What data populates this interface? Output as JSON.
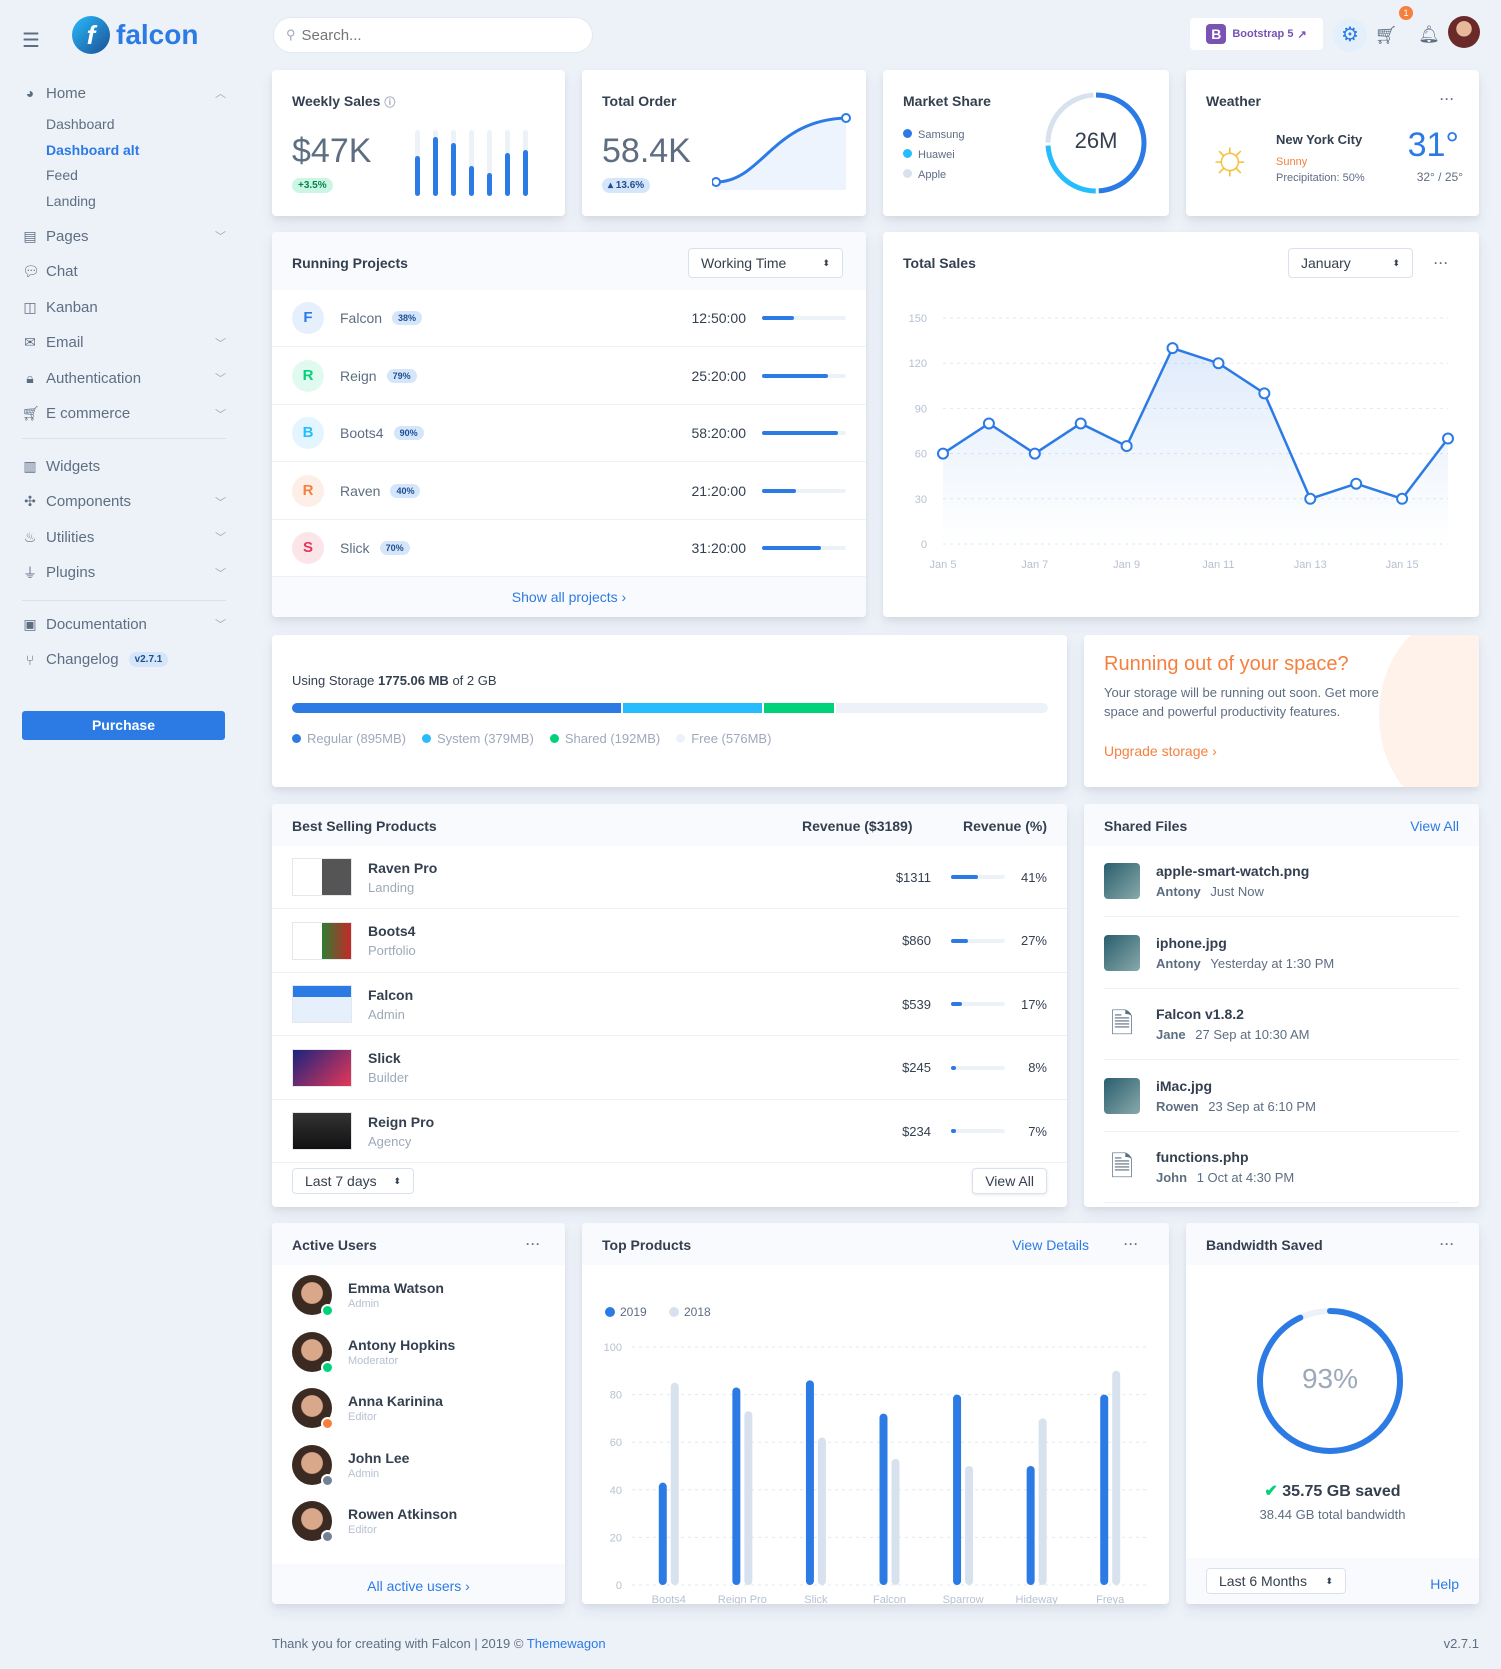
{
  "brand": {
    "name": "falcon"
  },
  "search": {
    "placeholder": "Search..."
  },
  "topbar": {
    "bootstrap_label": "Bootstrap 5",
    "cart_count": "1"
  },
  "sidebar": {
    "home": {
      "label": "Home",
      "sub": [
        "Dashboard",
        "Dashboard alt",
        "Feed",
        "Landing"
      ],
      "active": "Dashboard alt"
    },
    "items": [
      {
        "label": "Pages",
        "icon": "pages-icon",
        "chev": true
      },
      {
        "label": "Chat",
        "icon": "chat-icon",
        "chev": false
      },
      {
        "label": "Kanban",
        "icon": "kanban-icon",
        "chev": false
      },
      {
        "label": "Email",
        "icon": "email-icon",
        "chev": true
      },
      {
        "label": "Authentication",
        "icon": "lock-icon",
        "chev": true
      },
      {
        "label": "E commerce",
        "icon": "cart-icon",
        "chev": true
      }
    ],
    "items2": [
      {
        "label": "Widgets",
        "icon": "widgets-icon",
        "chev": false
      },
      {
        "label": "Components",
        "icon": "puzzle-icon",
        "chev": true
      },
      {
        "label": "Utilities",
        "icon": "fire-icon",
        "chev": true
      },
      {
        "label": "Plugins",
        "icon": "plug-icon",
        "chev": true
      }
    ],
    "items3": [
      {
        "label": "Documentation",
        "icon": "book-icon",
        "chev": true
      },
      {
        "label": "Changelog",
        "icon": "branch-icon",
        "chev": false,
        "badge": "v2.7.1"
      }
    ],
    "purchase": "Purchase"
  },
  "weekly": {
    "title": "Weekly Sales",
    "value": "$47K",
    "change": "+3.5%",
    "bars": [
      60,
      90,
      80,
      45,
      35,
      65,
      70
    ]
  },
  "order": {
    "title": "Total Order",
    "value": "58.4K",
    "change": "▴ 13.6%"
  },
  "market": {
    "title": "Market Share",
    "center": "26M",
    "legend": [
      {
        "label": "Samsung",
        "color": "#2c7be5"
      },
      {
        "label": "Huawei",
        "color": "#27bcfd"
      },
      {
        "label": "Apple",
        "color": "#d8e2ef"
      }
    ],
    "shares": [
      50,
      25,
      25
    ]
  },
  "weather": {
    "title": "Weather",
    "city": "New York City",
    "cond": "Sunny",
    "precip": "Precipitation: 50%",
    "temp": "31°",
    "range": "32° / 25°"
  },
  "projects": {
    "title": "Running Projects",
    "select": "Working Time",
    "footer": "Show all projects ›",
    "rows": [
      {
        "letter": "F",
        "name": "Falcon",
        "pct": "38%",
        "val": 38,
        "time": "12:50:00",
        "fg": "#2c7be5",
        "bg": "#e6effc"
      },
      {
        "letter": "R",
        "name": "Reign",
        "pct": "79%",
        "val": 79,
        "time": "25:20:00",
        "fg": "#00d27a",
        "bg": "#e0faef"
      },
      {
        "letter": "B",
        "name": "Boots4",
        "pct": "90%",
        "val": 90,
        "time": "58:20:00",
        "fg": "#27bcfd",
        "bg": "#e3f6ff"
      },
      {
        "letter": "R",
        "name": "Raven",
        "pct": "40%",
        "val": 40,
        "time": "21:20:00",
        "fg": "#f5803e",
        "bg": "#fdefe7"
      },
      {
        "letter": "S",
        "name": "Slick",
        "pct": "70%",
        "val": 70,
        "time": "31:20:00",
        "fg": "#e63757",
        "bg": "#fce5e9"
      }
    ]
  },
  "chart_data": [
    {
      "type": "line",
      "title": "Total Sales",
      "select": "January",
      "categories": [
        "Jan 5",
        "Jan 6",
        "Jan 7",
        "Jan 8",
        "Jan 9",
        "Jan 10",
        "Jan 11",
        "Jan 12",
        "Jan 13",
        "Jan 14",
        "Jan 15",
        "Jan 16"
      ],
      "x_tick_labels": [
        "Jan 5",
        "Jan 7",
        "Jan 9",
        "Jan 11",
        "Jan 13",
        "Jan 15"
      ],
      "values": [
        60,
        80,
        60,
        80,
        65,
        130,
        120,
        100,
        30,
        40,
        30,
        70
      ],
      "ylim": [
        0,
        150
      ],
      "yticks": [
        "0",
        "30",
        "60",
        "90",
        "120",
        "150"
      ],
      "grid": true,
      "color": "#2c7be5"
    },
    {
      "type": "bar",
      "title": "Top Products",
      "link": "View Details",
      "categories": [
        "Boots4",
        "Reign Pro",
        "Slick",
        "Falcon",
        "Sparrow",
        "Hideway",
        "Freya"
      ],
      "series": [
        {
          "name": "2019",
          "color": "#2c7be5",
          "values": [
            43,
            83,
            86,
            72,
            80,
            50,
            80
          ]
        },
        {
          "name": "2018",
          "color": "#d8e2ef",
          "values": [
            85,
            73,
            62,
            53,
            50,
            70,
            90
          ]
        }
      ],
      "ylim": [
        0,
        100
      ],
      "yticks": [
        "0",
        "20",
        "40",
        "60",
        "80",
        "100"
      ],
      "grid": true,
      "legend": "top-left"
    }
  ],
  "storage": {
    "prefix": "Using Storage ",
    "used": "1775.06 MB",
    "suffix": " of 2 GB",
    "segments": [
      {
        "label": "Regular (895MB)",
        "mb": 895,
        "color": "#2c7be5"
      },
      {
        "label": "System (379MB)",
        "mb": 379,
        "color": "#27bcfd"
      },
      {
        "label": "Shared (192MB)",
        "mb": 192,
        "color": "#00d27a"
      },
      {
        "label": "Free (576MB)",
        "mb": 576,
        "color": "#edf2f9"
      }
    ]
  },
  "space": {
    "title": "Running out of your space?",
    "text": "Your storage will be running out soon. Get more space and powerful productivity features.",
    "link": "Upgrade storage ›"
  },
  "best": {
    "title": "Best Selling Products",
    "col1": "Revenue ($3189)",
    "col2": "Revenue (%)",
    "select": "Last 7 days",
    "view_all": "View All",
    "rows": [
      {
        "name": "Raven Pro",
        "cat": "Landing",
        "rev": "$1311",
        "pct": "41%",
        "val": 41
      },
      {
        "name": "Boots4",
        "cat": "Portfolio",
        "rev": "$860",
        "pct": "27%",
        "val": 27
      },
      {
        "name": "Falcon",
        "cat": "Admin",
        "rev": "$539",
        "pct": "17%",
        "val": 17
      },
      {
        "name": "Slick",
        "cat": "Builder",
        "rev": "$245",
        "pct": "8%",
        "val": 8
      },
      {
        "name": "Reign Pro",
        "cat": "Agency",
        "rev": "$234",
        "pct": "7%",
        "val": 7
      }
    ]
  },
  "files": {
    "title": "Shared Files",
    "view_all": "View All",
    "rows": [
      {
        "name": "apple-smart-watch.png",
        "user": "Antony",
        "time": "Just Now",
        "icon": "image-thumb"
      },
      {
        "name": "iphone.jpg",
        "user": "Antony",
        "time": "Yesterday at 1:30 PM",
        "icon": "image-thumb"
      },
      {
        "name": "Falcon v1.8.2",
        "user": "Jane",
        "time": "27 Sep at 10:30 AM",
        "icon": "zip-file-icon"
      },
      {
        "name": "iMac.jpg",
        "user": "Rowen",
        "time": "23 Sep at 6:10 PM",
        "icon": "image-thumb"
      },
      {
        "name": "functions.php",
        "user": "John",
        "time": "1 Oct at 4:30 PM",
        "icon": "file-icon"
      }
    ]
  },
  "users": {
    "title": "Active Users",
    "footer": "All active users ›",
    "rows": [
      {
        "name": "Emma Watson",
        "role": "Admin",
        "status": "#00d27a"
      },
      {
        "name": "Antony Hopkins",
        "role": "Moderator",
        "status": "#00d27a"
      },
      {
        "name": "Anna Karinina",
        "role": "Editor",
        "status": "#f5803e"
      },
      {
        "name": "John Lee",
        "role": "Admin",
        "status": "#748194"
      },
      {
        "name": "Rowen Atkinson",
        "role": "Editor",
        "status": "#748194"
      }
    ]
  },
  "bandwidth": {
    "title": "Bandwidth Saved",
    "pct": "93%",
    "value": 93,
    "saved": "35.75 GB saved",
    "total": "38.44 GB total bandwidth",
    "select": "Last 6 Months",
    "help": "Help"
  },
  "footer": {
    "text": "Thank you for creating with Falcon | 2019 © ",
    "link": "Themewagon",
    "version": "v2.7.1"
  }
}
